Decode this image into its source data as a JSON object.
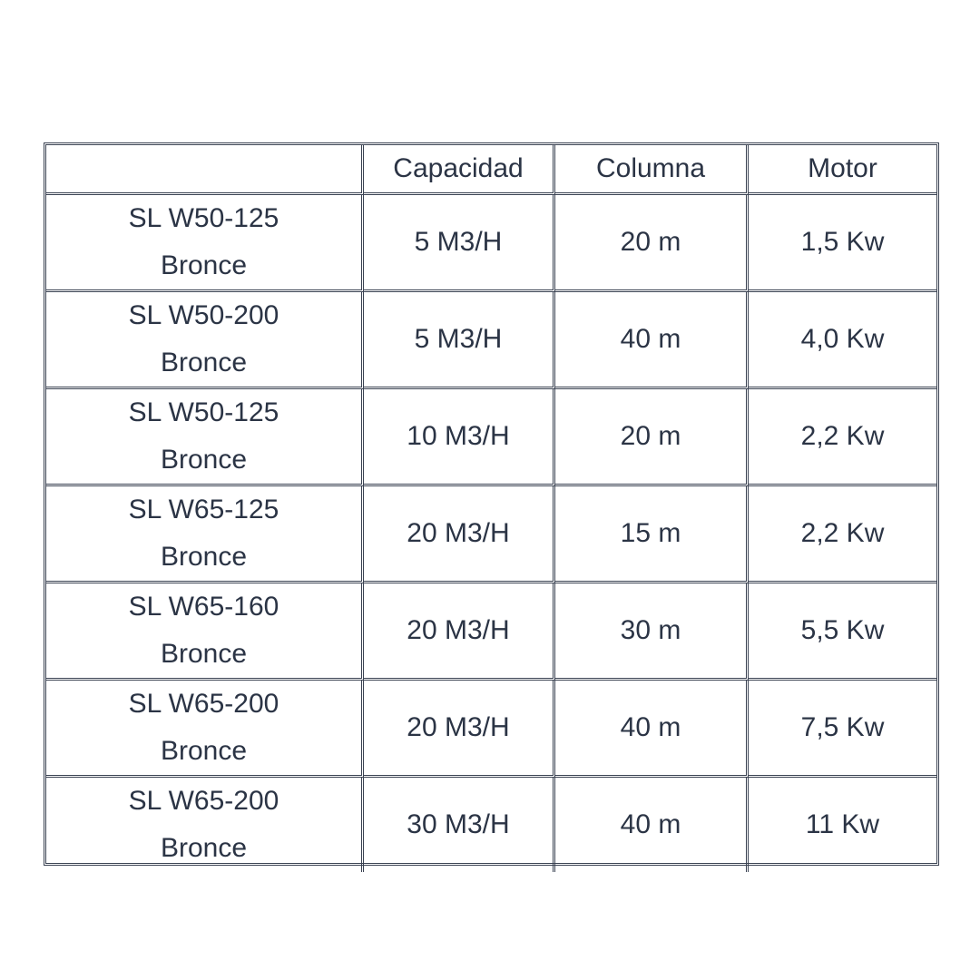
{
  "table": {
    "headers": [
      "",
      "Capacidad",
      "Columna",
      "Motor"
    ],
    "rows": [
      {
        "model": "SL W50-125",
        "material": "Bronce",
        "capacidad": "5 M3/H",
        "columna": "20 m",
        "motor": "1,5 Kw"
      },
      {
        "model": "SL W50-200",
        "material": "Bronce",
        "capacidad": "5 M3/H",
        "columna": "40 m",
        "motor": "4,0 Kw"
      },
      {
        "model": "SL W50-125",
        "material": "Bronce",
        "capacidad": "10 M3/H",
        "columna": "20 m",
        "motor": "2,2 Kw"
      },
      {
        "model": "SL W65-125",
        "material": "Bronce",
        "capacidad": "20 M3/H",
        "columna": "15 m",
        "motor": "2,2 Kw"
      },
      {
        "model": "SL W65-160",
        "material": "Bronce",
        "capacidad": "20 M3/H",
        "columna": "30 m",
        "motor": "5,5 Kw"
      },
      {
        "model": "SL W65-200",
        "material": "Bronce",
        "capacidad": "20 M3/H",
        "columna": "40 m",
        "motor": "7,5 Kw"
      },
      {
        "model": "SL W65-200",
        "material": "Bronce",
        "capacidad": "30 M3/H",
        "columna": "40 m",
        "motor": "11 Kw"
      }
    ]
  },
  "colors": {
    "text": "#2b3445",
    "border": "#3a4252"
  }
}
